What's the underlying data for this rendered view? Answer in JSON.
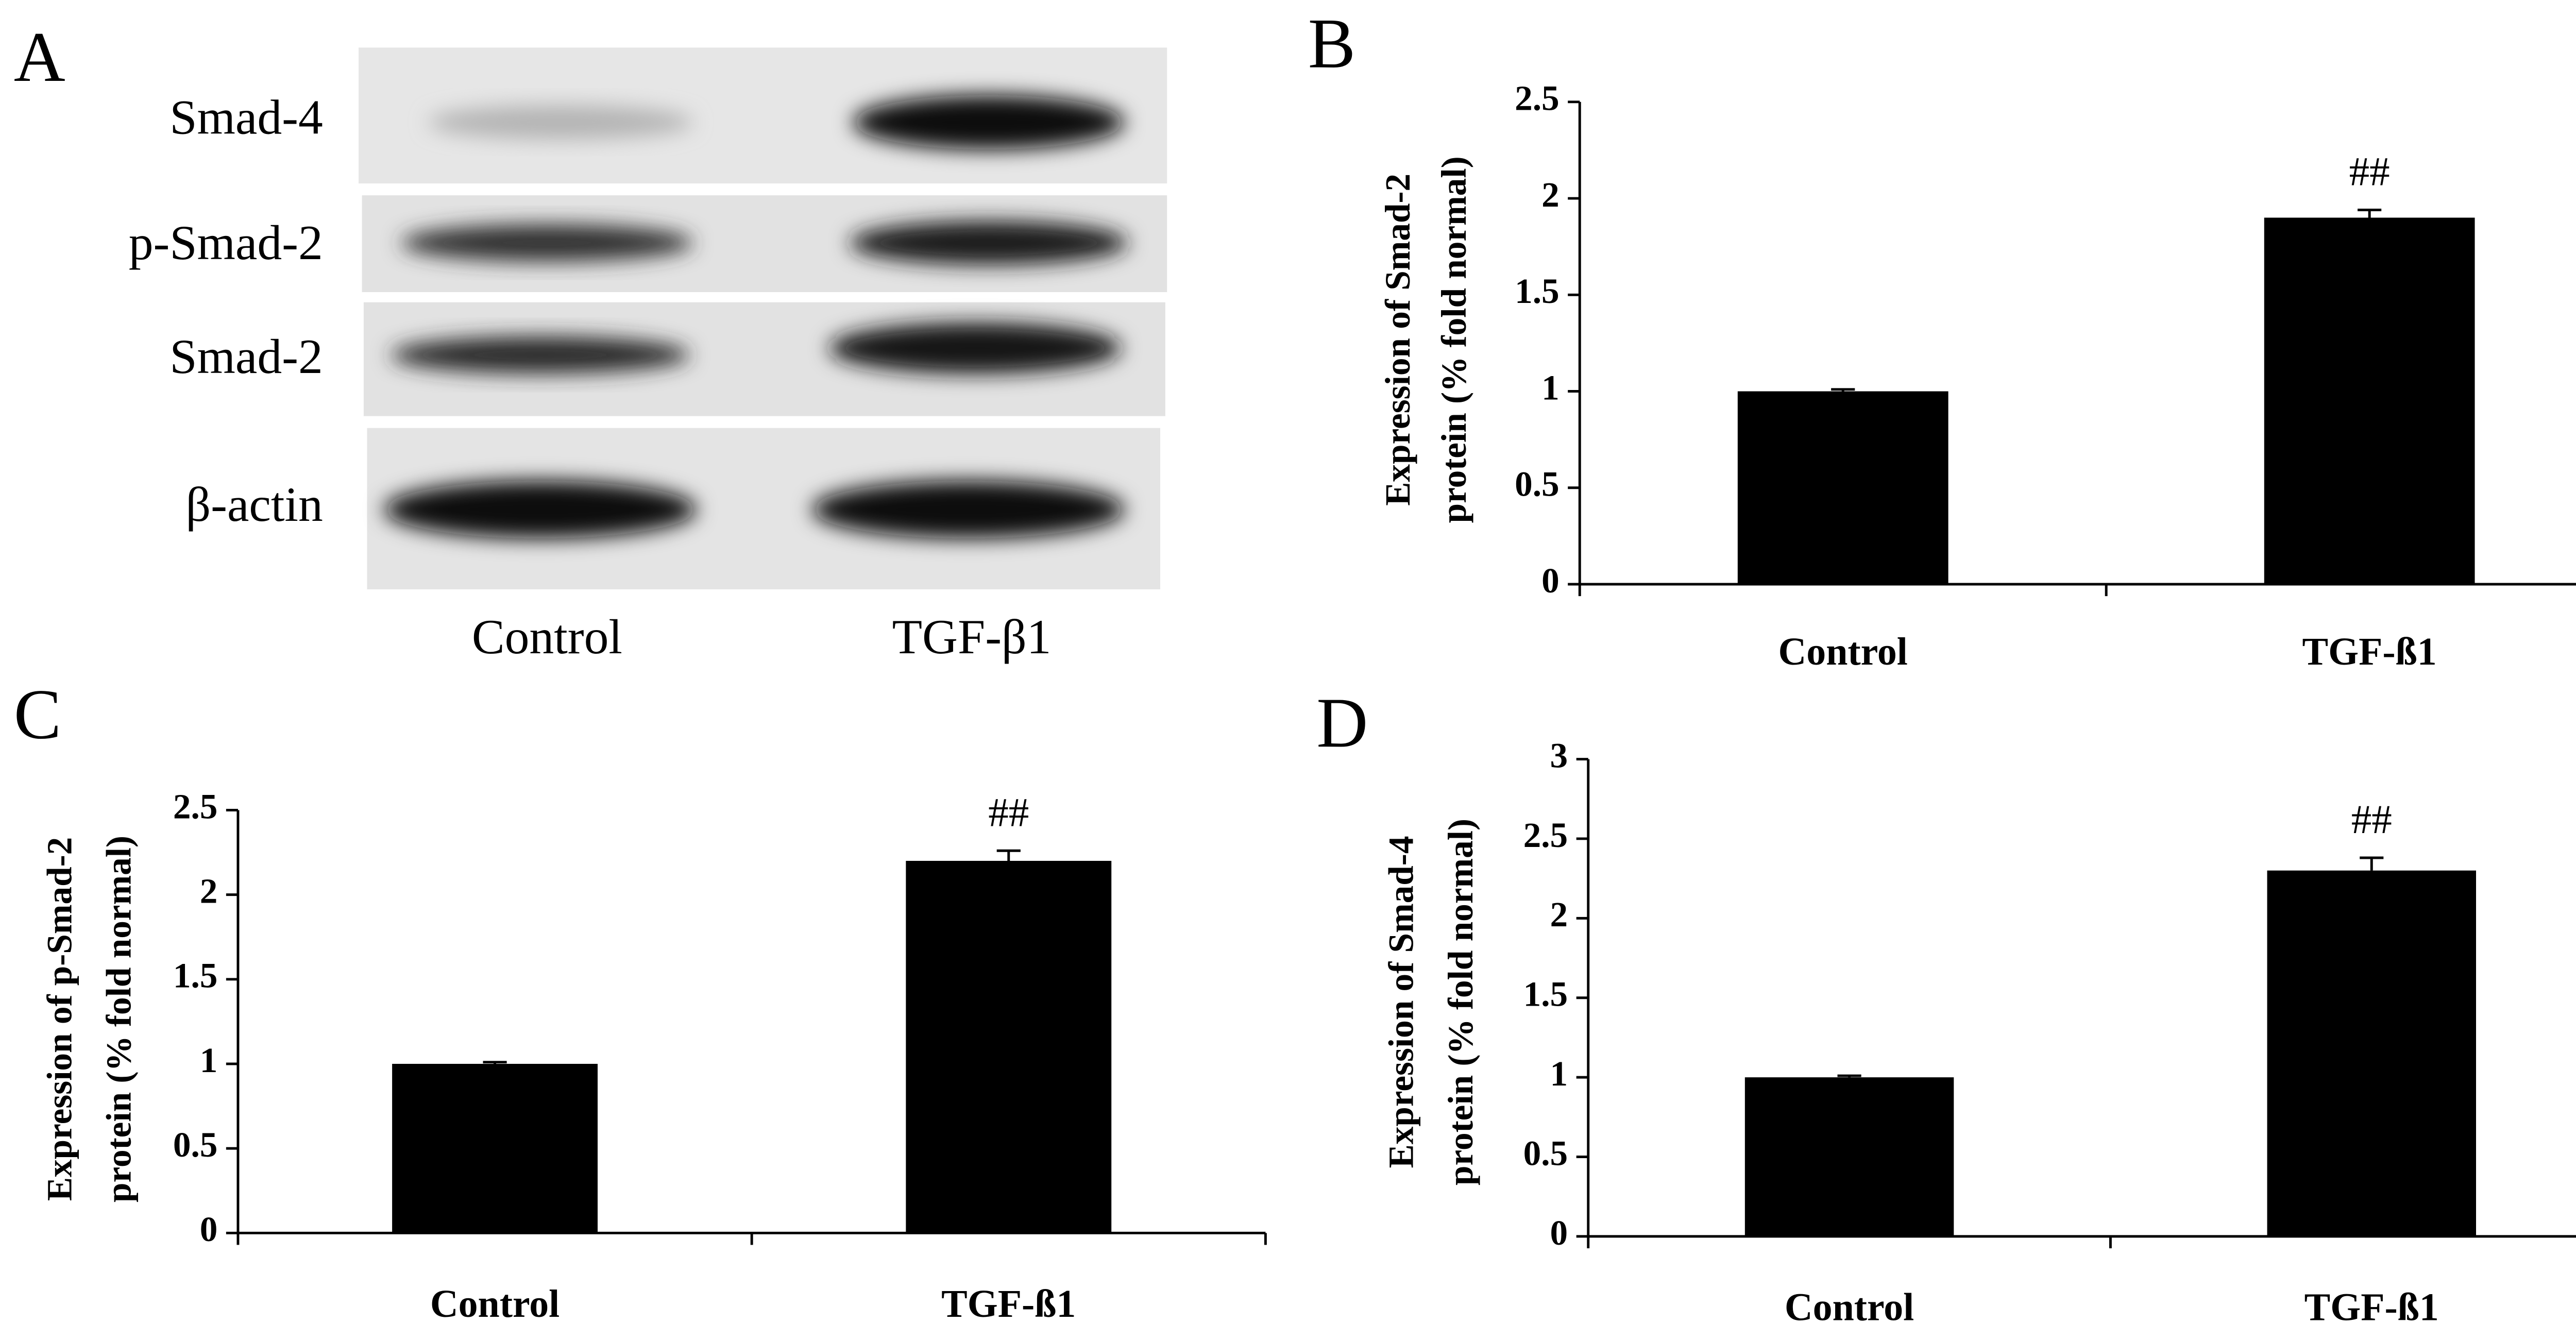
{
  "blot": {
    "panel": "A",
    "rows": [
      "Smad-4",
      "p-Smad-2",
      "Smad-2",
      "β-actin"
    ],
    "lanes": [
      "Control",
      "TGF-β1"
    ]
  },
  "chart_data": [
    {
      "type": "bar",
      "panel": "B",
      "ylabel": [
        "Expression of Smad-2",
        "protein (% fold normal)"
      ],
      "categories": [
        "Control",
        "TGF-ß1"
      ],
      "values": [
        1.0,
        1.9
      ],
      "errors": [
        0.01,
        0.04
      ],
      "color": "#000000",
      "ylim": [
        0,
        2.5
      ],
      "yticks": [
        0,
        0.5,
        1,
        1.5,
        2,
        2.5
      ],
      "annotations": [
        {
          "text": "##",
          "x": "TGF-ß1"
        }
      ]
    },
    {
      "type": "bar",
      "panel": "C",
      "ylabel": [
        "Expression of p-Smad-2",
        "protein (% fold normal)"
      ],
      "categories": [
        "Control",
        "TGF-ß1"
      ],
      "values": [
        1.0,
        2.2
      ],
      "errors": [
        0.01,
        0.06
      ],
      "color": "#000000",
      "ylim": [
        0,
        2.5
      ],
      "yticks": [
        0,
        0.5,
        1,
        1.5,
        2,
        2.5
      ],
      "annotations": [
        {
          "text": "##",
          "x": "TGF-ß1"
        }
      ]
    },
    {
      "type": "bar",
      "panel": "D",
      "ylabel": [
        "Expression of Smad-4",
        "protein (% fold normal)"
      ],
      "categories": [
        "Control",
        "TGF-ß1"
      ],
      "values": [
        1.0,
        2.3
      ],
      "errors": [
        0.01,
        0.08
      ],
      "color": "#000000",
      "ylim": [
        0,
        3
      ],
      "yticks": [
        0,
        0.5,
        1,
        1.5,
        2,
        2.5,
        3
      ],
      "annotations": [
        {
          "text": "##",
          "x": "TGF-ß1"
        }
      ]
    }
  ]
}
